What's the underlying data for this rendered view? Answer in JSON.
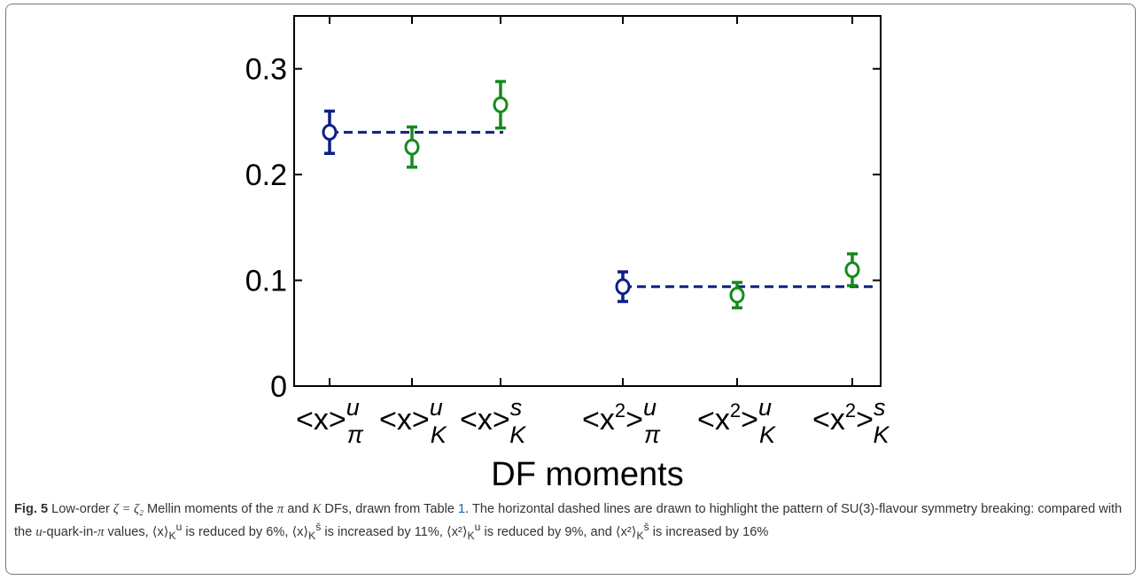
{
  "chart_data": {
    "type": "scatter",
    "categories": [
      "<x>^u_π",
      "<x>^u_K",
      "<x>^s_K",
      "<x^2>^u_π",
      "<x^2>^u_K",
      "<x^2>^s_K"
    ],
    "tick_labels": [
      {
        "base": "<x>",
        "sup": "u",
        "sub": "π"
      },
      {
        "base": "<x>",
        "sup": "u",
        "sub": "K"
      },
      {
        "base": "<x>",
        "sup": "s",
        "sub": "K"
      },
      {
        "base": "<x",
        "pow": "2",
        "close": ">",
        "sup": "u",
        "sub": "π"
      },
      {
        "base": "<x",
        "pow": "2",
        "close": ">",
        "sup": "u",
        "sub": "K"
      },
      {
        "base": "<x",
        "pow": "2",
        "close": ">",
        "sup": "s",
        "sub": "K"
      }
    ],
    "points": [
      {
        "x_index": 0,
        "y": 0.24,
        "err": 0.02,
        "color": "#0b1f8a"
      },
      {
        "x_index": 1,
        "y": 0.226,
        "err": 0.019,
        "color": "#168a1e"
      },
      {
        "x_index": 2,
        "y": 0.266,
        "err": 0.022,
        "color": "#168a1e"
      },
      {
        "x_index": 3,
        "y": 0.094,
        "err": 0.014,
        "color": "#0b1f8a"
      },
      {
        "x_index": 4,
        "y": 0.086,
        "err": 0.012,
        "color": "#168a1e"
      },
      {
        "x_index": 5,
        "y": 0.11,
        "err": 0.015,
        "color": "#168a1e"
      }
    ],
    "reference_lines": [
      {
        "y": 0.24,
        "from_index": 0,
        "to_index": 2,
        "style": "dashed",
        "color": "#0b1f8a"
      },
      {
        "y": 0.094,
        "from_index": 3,
        "to_index": 5,
        "style": "dashed",
        "color": "#0b1f8a"
      }
    ],
    "ylim": [
      0,
      0.35
    ],
    "yticks": [
      0,
      0.1,
      0.2,
      0.3
    ],
    "ytick_labels": [
      "0",
      "0.1",
      "0.2",
      "0.3"
    ],
    "xlabel": "DF moments",
    "ylabel": "",
    "grid": false,
    "legend": "none"
  },
  "caption": {
    "label": "Fig. 5",
    "text_1": " Low-order ",
    "math_1": "ζ = ζ₂",
    "text_2": " Mellin moments of the ",
    "math_2": "π",
    "text_3": " and ",
    "math_3": "K",
    "text_4": " DFs, drawn from Table ",
    "table_ref": "1",
    "text_5": ". The horizontal dashed lines are drawn to highlight the pattern of SU(3)-flavour symmetry breaking: compared with the ",
    "math_4": "u",
    "text_6": "-quark-in-",
    "math_5": "π",
    "text_7": " values, ⟨x⟩",
    "sub_1": "K",
    "sup_1": "u",
    "text_8": " is reduced by 6%, ⟨x⟩",
    "sub_2": "K",
    "sup_2": "s̄",
    "text_9": " is increased by 11%, ⟨x²⟩",
    "sub_3": "K",
    "sup_3": "u",
    "text_10": " is reduced by 9%, and ⟨x²⟩",
    "sub_4": "K",
    "sup_4": "s̄",
    "text_11": " is increased by 16%"
  }
}
